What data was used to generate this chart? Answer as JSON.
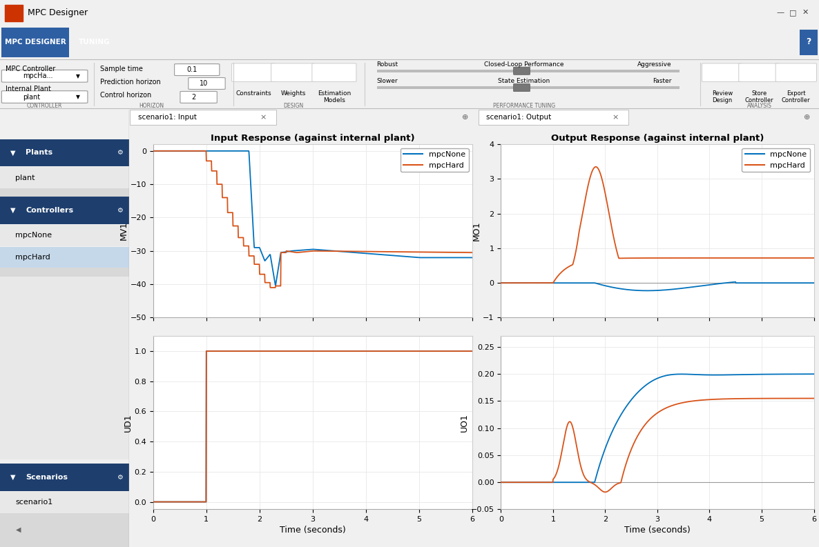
{
  "title": "MPC Designer",
  "tab1": "MPC DESIGNER",
  "tab2": "TUNING",
  "controller_label": "MPC Controller",
  "controller_value": "mpcHa...",
  "plant_label": "Internal Plant",
  "plant_value": "plant",
  "sample_time_label": "Sample time",
  "sample_time_value": "0.1",
  "pred_horizon_label": "Prediction horizon",
  "pred_horizon_value": "10",
  "ctrl_horizon_label": "Control horizon",
  "ctrl_horizon_value": "2",
  "section_controller": "CONTROLLER",
  "section_horizon": "HORIZON",
  "section_design": "DESIGN",
  "section_perf_tuning": "PERFORMANCE TUNING",
  "section_analysis": "ANALYSIS",
  "robust_label": "Robust",
  "aggressive_label": "Aggressive",
  "closed_loop_label": "Closed-Loop Performance",
  "slower_label": "Slower",
  "faster_label": "Faster",
  "state_est_label": "State Estimation",
  "plants_section": "Plants",
  "plants_items": [
    "plant"
  ],
  "controllers_section": "Controllers",
  "controllers_items": [
    "mpcNone",
    "mpcHard"
  ],
  "scenarios_section": "Scenarios",
  "scenarios_items": [
    "scenario1"
  ],
  "tab_input": "scenario1: Input",
  "tab_output": "scenario1: Output",
  "title_input": "Input Response (against internal plant)",
  "title_output": "Output Response (against internal plant)",
  "mv1_ylabel": "MV1",
  "ud1_ylabel": "UD1",
  "mo1_ylabel": "MO1",
  "uo1_ylabel": "UO1",
  "xlabel": "Time (seconds)",
  "legend_none": "mpcNone",
  "legend_hard": "mpcHard",
  "color_none": "#0072BD",
  "color_hard": "#D95319",
  "mv1_yticks": [
    0,
    -10,
    -20,
    -30,
    -40,
    -50
  ],
  "ud1_yticks": [
    0,
    0.2,
    0.4,
    0.6,
    0.8,
    1.0
  ],
  "mo1_yticks": [
    -1,
    0,
    1,
    2,
    3,
    4
  ],
  "uo1_yticks": [
    -0.05,
    0,
    0.05,
    0.1,
    0.15,
    0.2,
    0.25
  ],
  "xticks": [
    0,
    1,
    2,
    3,
    4,
    5,
    6
  ],
  "mv1_ylim": [
    -50,
    2
  ],
  "ud1_ylim": [
    -0.05,
    1.1
  ],
  "mo1_ylim": [
    -1,
    4
  ],
  "uo1_ylim": [
    -0.05,
    0.27
  ],
  "xlim": [
    0,
    6
  ],
  "bg_titlebar": "#f0f0f0",
  "bg_toolbar": "#1e3f6e",
  "bg_ribbon": "#f5f5f5",
  "bg_sidebar": "#e8e8e8",
  "bg_sidebar_header": "#1e3f6e",
  "bg_sidebar_selected": "#c5d8ea",
  "bg_plot_area": "#d4d4d4",
  "bg_plot": "#ffffff",
  "bg_tab_strip": "#d0d4d8",
  "bg_tab_active": "#ffffff",
  "color_dark_blue": "#1e3f6e",
  "color_medium_blue": "#2e5fa3",
  "color_text_dark": "#333333",
  "color_grid": "#e8e8e8",
  "color_zero_line": "#999999",
  "fig_width": 11.86,
  "fig_height": 7.93,
  "fig_dpi": 100
}
